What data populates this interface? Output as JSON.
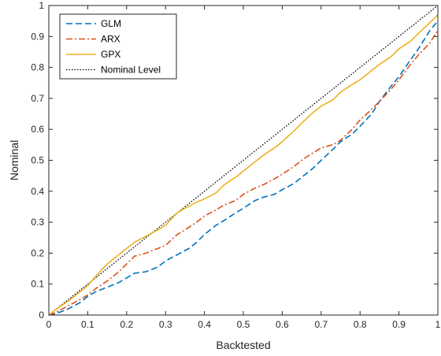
{
  "chart_data": {
    "type": "line",
    "title": "",
    "xlabel": "Backtested",
    "ylabel": "Nominal",
    "xlim": [
      0,
      1
    ],
    "ylim": [
      0,
      1
    ],
    "grid": false,
    "legend_position": "top-left",
    "x_ticks": [
      "0",
      "0.1",
      "0.2",
      "0.3",
      "0.4",
      "0.5",
      "0.6",
      "0.7",
      "0.8",
      "0.9",
      "1"
    ],
    "y_ticks": [
      "0",
      "0.1",
      "0.2",
      "0.3",
      "0.4",
      "0.5",
      "0.6",
      "0.7",
      "0.8",
      "0.9",
      "1"
    ],
    "series": [
      {
        "name": "GLM",
        "color": "#0072BD",
        "dash": "dashed",
        "points": [
          [
            0,
            0
          ],
          [
            0.02,
            0.005
          ],
          [
            0.05,
            0.02
          ],
          [
            0.08,
            0.04
          ],
          [
            0.1,
            0.06
          ],
          [
            0.12,
            0.075
          ],
          [
            0.15,
            0.09
          ],
          [
            0.18,
            0.105
          ],
          [
            0.2,
            0.12
          ],
          [
            0.22,
            0.135
          ],
          [
            0.25,
            0.14
          ],
          [
            0.28,
            0.155
          ],
          [
            0.3,
            0.175
          ],
          [
            0.33,
            0.195
          ],
          [
            0.36,
            0.215
          ],
          [
            0.38,
            0.235
          ],
          [
            0.4,
            0.26
          ],
          [
            0.43,
            0.29
          ],
          [
            0.45,
            0.305
          ],
          [
            0.48,
            0.33
          ],
          [
            0.5,
            0.345
          ],
          [
            0.53,
            0.37
          ],
          [
            0.55,
            0.38
          ],
          [
            0.58,
            0.39
          ],
          [
            0.6,
            0.405
          ],
          [
            0.63,
            0.425
          ],
          [
            0.65,
            0.445
          ],
          [
            0.68,
            0.475
          ],
          [
            0.7,
            0.5
          ],
          [
            0.73,
            0.535
          ],
          [
            0.75,
            0.56
          ],
          [
            0.78,
            0.585
          ],
          [
            0.8,
            0.61
          ],
          [
            0.83,
            0.65
          ],
          [
            0.85,
            0.69
          ],
          [
            0.88,
            0.74
          ],
          [
            0.9,
            0.77
          ],
          [
            0.93,
            0.825
          ],
          [
            0.95,
            0.86
          ],
          [
            0.98,
            0.92
          ],
          [
            1,
            0.95
          ]
        ]
      },
      {
        "name": "ARX",
        "color": "#D95319",
        "dash": "dashdot",
        "points": [
          [
            0,
            0
          ],
          [
            0.02,
            0.01
          ],
          [
            0.05,
            0.03
          ],
          [
            0.08,
            0.05
          ],
          [
            0.1,
            0.065
          ],
          [
            0.12,
            0.085
          ],
          [
            0.15,
            0.11
          ],
          [
            0.18,
            0.14
          ],
          [
            0.2,
            0.165
          ],
          [
            0.22,
            0.19
          ],
          [
            0.25,
            0.2
          ],
          [
            0.28,
            0.215
          ],
          [
            0.3,
            0.225
          ],
          [
            0.33,
            0.26
          ],
          [
            0.35,
            0.275
          ],
          [
            0.38,
            0.3
          ],
          [
            0.4,
            0.32
          ],
          [
            0.43,
            0.34
          ],
          [
            0.45,
            0.355
          ],
          [
            0.48,
            0.37
          ],
          [
            0.5,
            0.39
          ],
          [
            0.53,
            0.41
          ],
          [
            0.55,
            0.42
          ],
          [
            0.58,
            0.44
          ],
          [
            0.6,
            0.455
          ],
          [
            0.63,
            0.48
          ],
          [
            0.65,
            0.5
          ],
          [
            0.68,
            0.525
          ],
          [
            0.7,
            0.54
          ],
          [
            0.73,
            0.55
          ],
          [
            0.75,
            0.565
          ],
          [
            0.78,
            0.6
          ],
          [
            0.8,
            0.63
          ],
          [
            0.83,
            0.665
          ],
          [
            0.85,
            0.69
          ],
          [
            0.88,
            0.73
          ],
          [
            0.9,
            0.76
          ],
          [
            0.93,
            0.81
          ],
          [
            0.95,
            0.84
          ],
          [
            0.98,
            0.88
          ],
          [
            1,
            0.92
          ]
        ]
      },
      {
        "name": "GPX",
        "color": "#EDB120",
        "dash": "solid",
        "points": [
          [
            0,
            0
          ],
          [
            0.02,
            0.02
          ],
          [
            0.05,
            0.045
          ],
          [
            0.08,
            0.075
          ],
          [
            0.1,
            0.095
          ],
          [
            0.12,
            0.125
          ],
          [
            0.15,
            0.165
          ],
          [
            0.18,
            0.195
          ],
          [
            0.2,
            0.215
          ],
          [
            0.22,
            0.235
          ],
          [
            0.25,
            0.255
          ],
          [
            0.28,
            0.275
          ],
          [
            0.3,
            0.29
          ],
          [
            0.33,
            0.33
          ],
          [
            0.35,
            0.345
          ],
          [
            0.38,
            0.365
          ],
          [
            0.4,
            0.375
          ],
          [
            0.43,
            0.395
          ],
          [
            0.45,
            0.42
          ],
          [
            0.48,
            0.445
          ],
          [
            0.5,
            0.465
          ],
          [
            0.53,
            0.495
          ],
          [
            0.55,
            0.515
          ],
          [
            0.58,
            0.54
          ],
          [
            0.6,
            0.56
          ],
          [
            0.63,
            0.595
          ],
          [
            0.65,
            0.62
          ],
          [
            0.68,
            0.655
          ],
          [
            0.7,
            0.675
          ],
          [
            0.73,
            0.695
          ],
          [
            0.75,
            0.72
          ],
          [
            0.78,
            0.745
          ],
          [
            0.8,
            0.76
          ],
          [
            0.83,
            0.79
          ],
          [
            0.85,
            0.81
          ],
          [
            0.88,
            0.835
          ],
          [
            0.9,
            0.86
          ],
          [
            0.93,
            0.885
          ],
          [
            0.95,
            0.91
          ],
          [
            0.98,
            0.945
          ],
          [
            1,
            0.97
          ]
        ]
      },
      {
        "name": "Nominal Level",
        "color": "#000000",
        "dash": "dotted",
        "points": [
          [
            0,
            0
          ],
          [
            1,
            1
          ]
        ]
      }
    ]
  }
}
